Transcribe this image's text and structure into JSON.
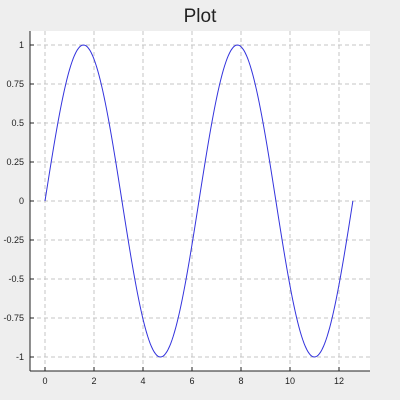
{
  "chart_data": {
    "type": "line",
    "title": "Plot",
    "xlabel": "",
    "ylabel": "",
    "xlim": [
      0,
      12.566
    ],
    "ylim": [
      -1,
      1
    ],
    "grid": true,
    "x_ticks": [
      "0",
      "2",
      "4",
      "6",
      "8",
      "10",
      "12"
    ],
    "y_ticks": [
      "1",
      "0.75",
      "0.5",
      "0.25",
      "0",
      "-0.25",
      "-0.5",
      "-0.75",
      "-1"
    ],
    "series": [
      {
        "color": "#3333dd",
        "function": "sin(x)",
        "x": [
          0,
          0.5,
          1,
          1.5708,
          2,
          2.5,
          3,
          3.1416,
          3.5,
          4,
          4.5,
          4.7124,
          5,
          5.5,
          6,
          6.2832,
          6.5,
          7,
          7.5,
          7.854,
          8,
          8.5,
          9,
          9.4248,
          9.5,
          10,
          10.5,
          10.9956,
          11,
          11.5,
          12,
          12.5664
        ],
        "y": [
          0,
          0.479,
          0.841,
          1,
          0.909,
          0.598,
          0.141,
          0,
          -0.351,
          -0.757,
          -0.978,
          -1,
          -0.959,
          -0.706,
          -0.279,
          0,
          0.215,
          0.657,
          0.938,
          1,
          0.989,
          0.798,
          0.412,
          0,
          -0.075,
          -0.544,
          -0.88,
          -1,
          -1,
          -0.875,
          -0.537,
          0
        ]
      }
    ]
  }
}
